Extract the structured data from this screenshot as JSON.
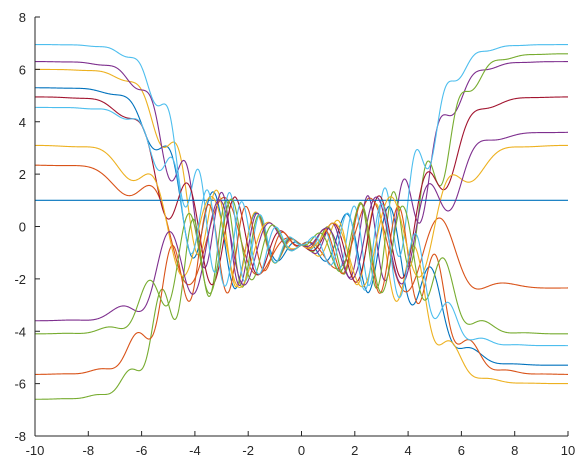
{
  "chart_data": {
    "type": "line",
    "title": "",
    "xlabel": "",
    "ylabel": "",
    "xlim": [
      -10,
      10
    ],
    "ylim": [
      -8,
      8
    ],
    "xticks": [
      -10,
      -8,
      -6,
      -4,
      -2,
      0,
      2,
      4,
      6,
      8,
      10
    ],
    "yticks": [
      -8,
      -6,
      -4,
      -2,
      0,
      2,
      4,
      6,
      8
    ],
    "xtick_labels": [
      "-10",
      "-8",
      "-6",
      "-4",
      "-2",
      "0",
      "2",
      "4",
      "6",
      "8",
      "10"
    ],
    "ytick_labels": [
      "-8",
      "-6",
      "-4",
      "-2",
      "0",
      "2",
      "4",
      "6",
      "8"
    ],
    "grid": false,
    "legend": "none",
    "series": [
      {
        "color": "#0072BD",
        "left": 5.3,
        "right": -5.3,
        "center": -0.7,
        "omega": 3.8,
        "width": 5.1,
        "phase": 0.0
      },
      {
        "color": "#D95319",
        "left": 2.35,
        "right": -2.35,
        "center": -0.7,
        "omega": 2.3,
        "width": 6.0,
        "phase": 0.4
      },
      {
        "color": "#EDB120",
        "left": 6.0,
        "right": -6.0,
        "center": -0.7,
        "omega": 4.2,
        "width": 4.9,
        "phase": 0.8
      },
      {
        "color": "#7E2F8E",
        "left": 6.3,
        "right": 6.3,
        "center": -0.7,
        "omega": 4.6,
        "width": 5.0,
        "phase": 1.2
      },
      {
        "color": "#77AC30",
        "left": -6.6,
        "right": 6.6,
        "center": -0.7,
        "omega": 5.0,
        "width": 5.4,
        "phase": 1.6
      },
      {
        "color": "#4DBEEE",
        "left": 6.95,
        "right": 6.95,
        "center": -0.7,
        "omega": 5.4,
        "width": 4.8,
        "phase": 2.0
      },
      {
        "color": "#A2142F",
        "left": 4.95,
        "right": 4.95,
        "center": -0.7,
        "omega": 3.5,
        "width": 5.4,
        "phase": 2.4
      },
      {
        "color": "#0072BD",
        "left": 1.0,
        "right": 1.0,
        "center": 1.0,
        "omega": 0.0,
        "width": 5.0,
        "phase": 0.0
      },
      {
        "color": "#D95319",
        "left": -5.65,
        "right": -5.65,
        "center": -0.7,
        "omega": 4.4,
        "width": 5.5,
        "phase": 2.8
      },
      {
        "color": "#EDB120",
        "left": 3.1,
        "right": 3.1,
        "center": -0.7,
        "omega": 2.8,
        "width": 5.8,
        "phase": 3.2
      },
      {
        "color": "#7E2F8E",
        "left": -3.6,
        "right": 3.6,
        "center": -0.7,
        "omega": 3.2,
        "width": 5.6,
        "phase": 3.6
      },
      {
        "color": "#77AC30",
        "left": -4.1,
        "right": -4.1,
        "center": -0.7,
        "omega": 3.9,
        "width": 5.5,
        "phase": 4.0
      },
      {
        "color": "#4DBEEE",
        "left": 4.55,
        "right": -4.55,
        "center": -0.7,
        "omega": 4.8,
        "width": 5.0,
        "phase": 4.4
      }
    ]
  }
}
